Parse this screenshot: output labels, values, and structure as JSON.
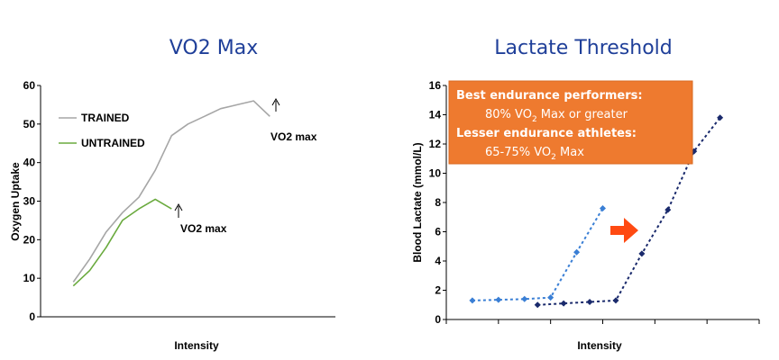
{
  "colors": {
    "title": "#1f3f99",
    "trained": "#a6a6a6",
    "untrained": "#6aaa3e",
    "sub_threshold_series": "#3a7fd5",
    "trained_threshold_series": "#1a2a6c",
    "callout_box": "#ee7a2f",
    "arrow": "#ff4a12"
  },
  "chart_data": [
    {
      "type": "line",
      "title": "VO2 Max",
      "xlabel": "Intensity",
      "ylabel": "Oxygen Uptake",
      "ylim": [
        0,
        60
      ],
      "yticks": [
        "0",
        "10",
        "20",
        "30",
        "40",
        "50",
        "60"
      ],
      "xlim": [
        0,
        9
      ],
      "legend_position": "top-left",
      "grid": false,
      "series": [
        {
          "name": "TRAINED",
          "color": "#a6a6a6",
          "x": [
            1,
            1.5,
            2,
            2.5,
            3,
            3.5,
            4,
            4.5,
            5,
            5.5,
            6,
            6.5,
            7
          ],
          "y": [
            9,
            15,
            22,
            27,
            31,
            38,
            47,
            50,
            52,
            54,
            55,
            56,
            52
          ]
        },
        {
          "name": "UNTRAINED",
          "color": "#6aaa3e",
          "x": [
            1,
            1.5,
            2,
            2.5,
            3,
            3.5,
            4
          ],
          "y": [
            8,
            12,
            18,
            25,
            28,
            30.5,
            28
          ]
        }
      ],
      "annotations": [
        {
          "text": "VO2 max",
          "x": 6.5,
          "y": 56
        },
        {
          "text": "VO2 max",
          "x": 3.5,
          "y": 30.5
        }
      ]
    },
    {
      "type": "line",
      "title": "Lactate Threshold",
      "xlabel": "Intensity",
      "ylabel": "Blood Lactate (mmol/L)",
      "ylim": [
        0,
        16
      ],
      "yticks": [
        "0",
        "2",
        "4",
        "6",
        "8",
        "10",
        "12",
        "14",
        "16"
      ],
      "xlim": [
        0,
        12
      ],
      "grid": false,
      "series": [
        {
          "color": "#3a7fd5",
          "x": [
            1,
            2,
            3,
            4,
            5,
            6
          ],
          "y": [
            1.3,
            1.35,
            1.4,
            1.5,
            4.6,
            7.6
          ]
        },
        {
          "color": "#1a2a6c",
          "x": [
            3.5,
            4.5,
            5.5,
            6.5,
            7.5,
            8.5,
            9.5,
            10.5
          ],
          "y": [
            1.0,
            1.1,
            1.2,
            1.3,
            4.5,
            7.5,
            11.5,
            13.8
          ]
        }
      ],
      "callout": {
        "line1": "Best endurance performers:",
        "line2_pre": "80% VO",
        "line2_sub": "2",
        "line2_post": " Max or greater",
        "line3": "Lesser endurance athletes:",
        "line4_pre": "65-75% VO",
        "line4_sub": "2",
        "line4_post": " Max"
      }
    }
  ]
}
